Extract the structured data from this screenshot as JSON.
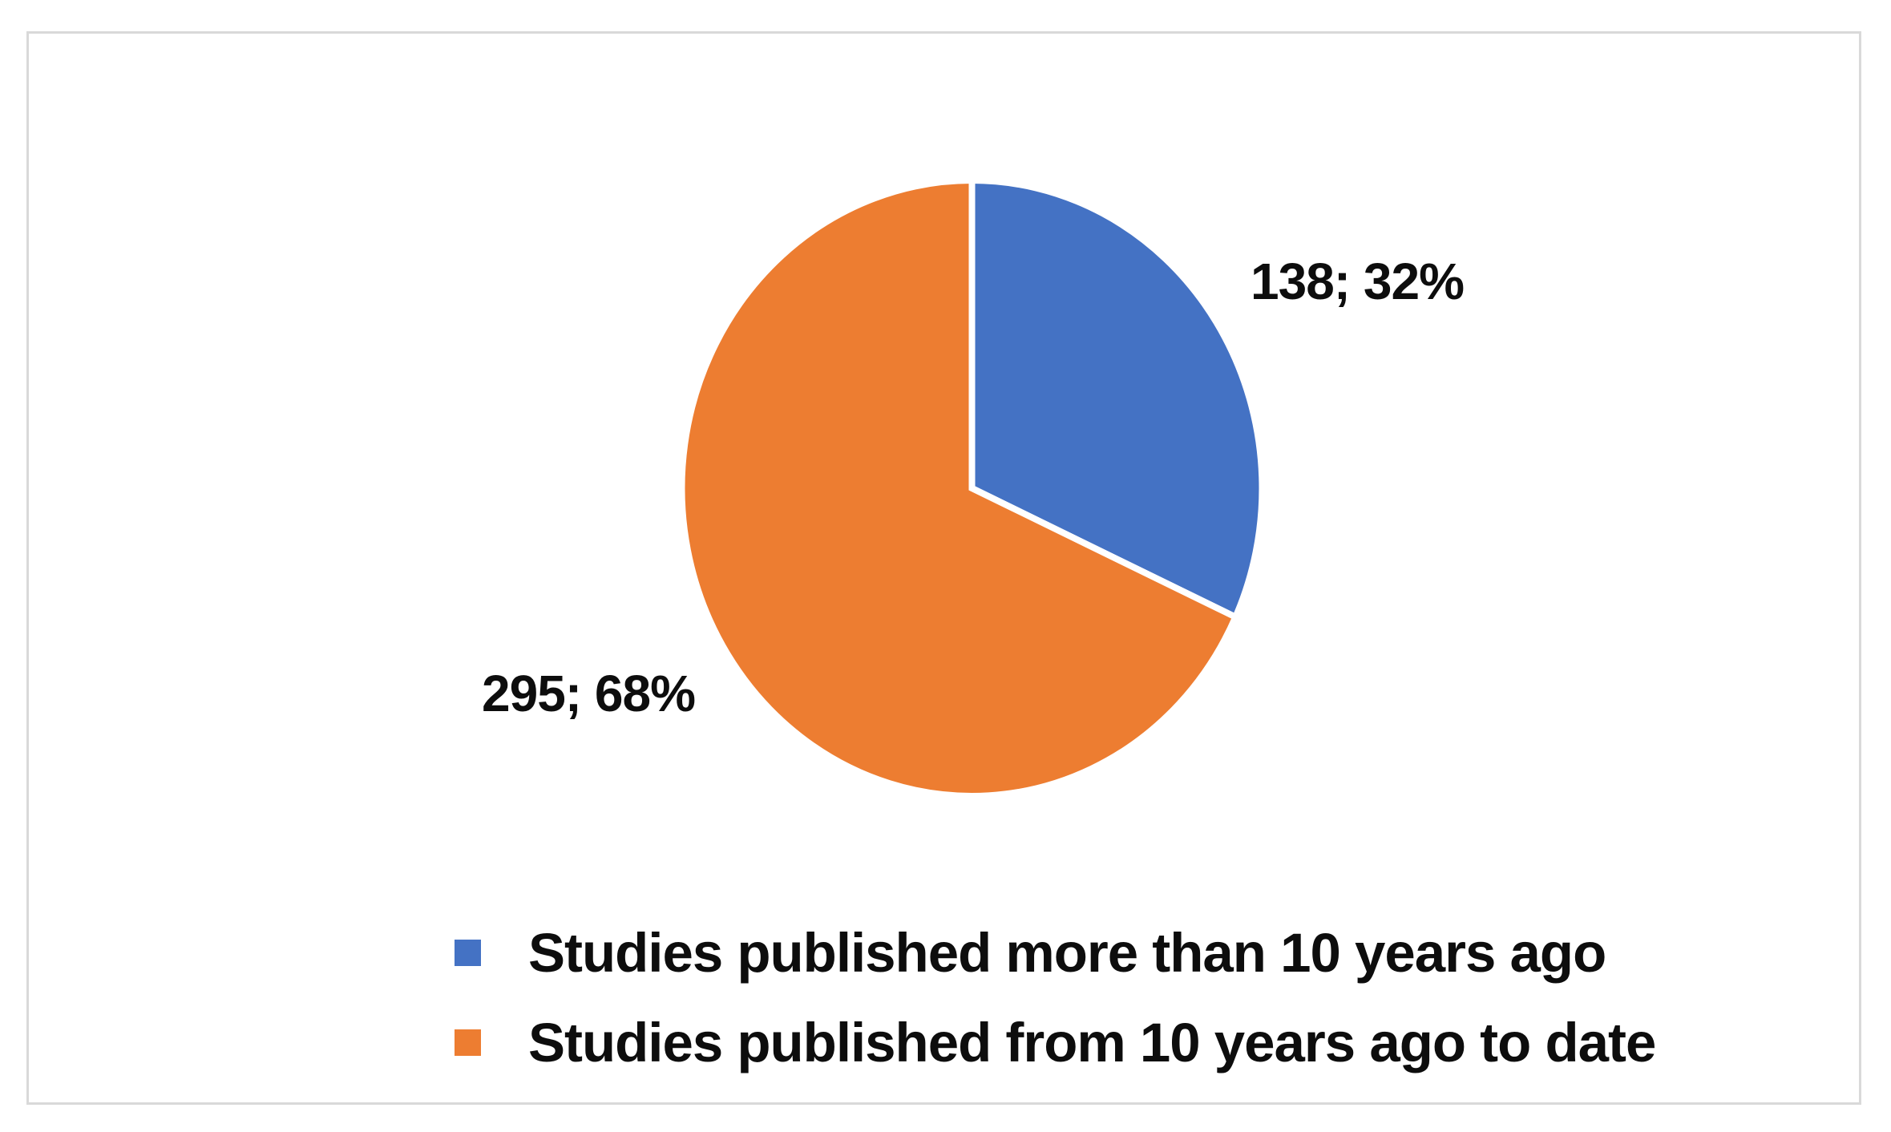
{
  "frame": {
    "background": "#ffffff",
    "border_color": "#d9d9d9"
  },
  "chart_data": {
    "type": "pie",
    "title": "",
    "total": 433,
    "start_angle_deg": -90,
    "direction": "clockwise",
    "divider_color": "#ffffff",
    "legend_position": "bottom-left",
    "slices": [
      {
        "label": "Studies published more than 10 years ago",
        "value": 138,
        "pct": 32,
        "data_label": "138; 32%",
        "color": "#4472C4"
      },
      {
        "label": "Studies published from 10 years ago to date",
        "value": 295,
        "pct": 68,
        "data_label": "295; 68%",
        "color": "#ED7D31"
      }
    ]
  }
}
